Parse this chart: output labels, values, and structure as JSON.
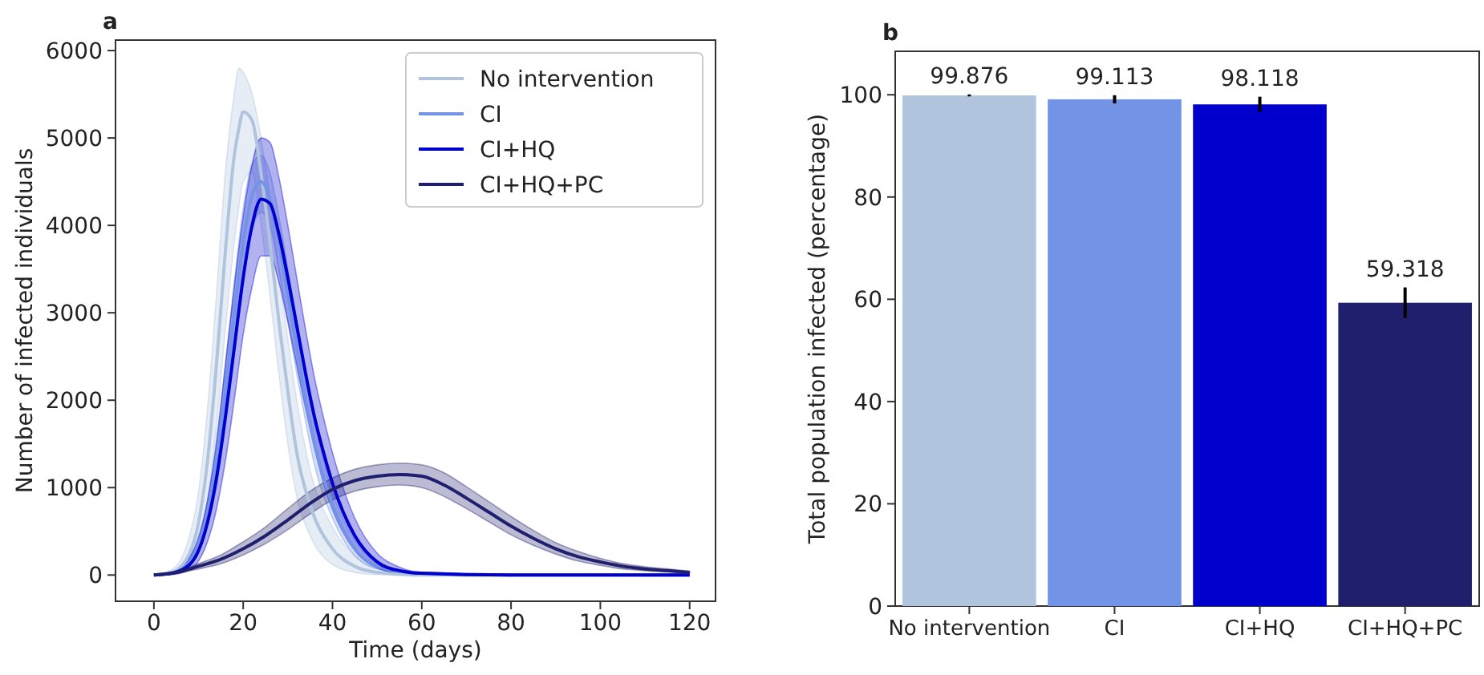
{
  "chart_data": [
    {
      "type": "line",
      "title": "a",
      "xlabel": "Time (days)",
      "ylabel": "Number of infected individuals",
      "xlim": [
        -8.6,
        125.8
      ],
      "ylim": [
        -300,
        6120
      ],
      "xticks": [
        0,
        20,
        40,
        60,
        80,
        100,
        120
      ],
      "yticks": [
        0,
        1000,
        2000,
        3000,
        4000,
        5000,
        6000
      ],
      "grid": false,
      "legend": "top right",
      "line_style": "solid",
      "marker": "none",
      "series": [
        {
          "name": "No intervention",
          "color": "#b0c4de",
          "x": [
            0,
            4,
            8,
            10,
            12,
            14,
            16,
            18,
            19,
            20,
            22,
            24,
            26,
            28,
            30,
            32,
            35,
            40,
            45,
            50,
            60,
            80,
            100,
            120
          ],
          "values": [
            0,
            30,
            250,
            600,
            1300,
            2400,
            3700,
            4800,
            5100,
            5300,
            5200,
            4600,
            3800,
            2900,
            2100,
            1400,
            800,
            300,
            100,
            30,
            0,
            0,
            0,
            0
          ],
          "lower": [
            0,
            10,
            120,
            350,
            850,
            1700,
            2800,
            3800,
            4200,
            4500,
            4600,
            4000,
            3200,
            2300,
            1500,
            900,
            450,
            120,
            30,
            5,
            0,
            0,
            0,
            0
          ],
          "upper": [
            0,
            60,
            450,
            950,
            1900,
            3200,
            4600,
            5500,
            5800,
            5750,
            5500,
            5000,
            4300,
            3500,
            2700,
            2000,
            1200,
            550,
            220,
            80,
            15,
            0,
            0,
            0
          ]
        },
        {
          "name": "CI",
          "color": "#7393e6",
          "x": [
            0,
            4,
            8,
            10,
            12,
            14,
            16,
            18,
            20,
            22,
            24,
            26,
            28,
            30,
            32,
            34,
            36,
            40,
            45,
            50,
            60,
            80,
            100,
            120
          ],
          "values": [
            0,
            20,
            150,
            350,
            700,
            1300,
            2100,
            3000,
            3800,
            4350,
            4500,
            4300,
            3800,
            3200,
            2600,
            2000,
            1500,
            800,
            300,
            100,
            20,
            0,
            0,
            0
          ],
          "lower": [
            0,
            10,
            100,
            260,
            550,
            1050,
            1800,
            2650,
            3400,
            3950,
            4150,
            4000,
            3500,
            2900,
            2300,
            1750,
            1250,
            650,
            220,
            70,
            10,
            0,
            0,
            0
          ],
          "upper": [
            0,
            30,
            200,
            450,
            850,
            1550,
            2400,
            3350,
            4200,
            4700,
            4800,
            4600,
            4100,
            3500,
            2900,
            2250,
            1750,
            950,
            400,
            140,
            30,
            0,
            0,
            0
          ]
        },
        {
          "name": "CI+HQ",
          "color": "#0000cd",
          "x": [
            0,
            4,
            8,
            10,
            12,
            14,
            16,
            18,
            20,
            22,
            24,
            26,
            28,
            30,
            32,
            34,
            36,
            38,
            40,
            45,
            50,
            55,
            60,
            80,
            100,
            120
          ],
          "values": [
            0,
            20,
            120,
            280,
            600,
            1100,
            1800,
            2600,
            3400,
            4000,
            4300,
            4250,
            3900,
            3400,
            2850,
            2300,
            1800,
            1400,
            1050,
            450,
            150,
            50,
            20,
            0,
            0,
            0
          ],
          "lower": [
            0,
            5,
            60,
            160,
            380,
            750,
            1300,
            2000,
            2750,
            3300,
            3650,
            3650,
            3350,
            2900,
            2400,
            1900,
            1450,
            1050,
            750,
            280,
            80,
            20,
            5,
            0,
            0,
            0
          ],
          "upper": [
            0,
            35,
            200,
            420,
            850,
            1500,
            2400,
            3300,
            4100,
            4700,
            5000,
            4950,
            4550,
            4000,
            3400,
            2800,
            2250,
            1800,
            1400,
            650,
            250,
            90,
            30,
            0,
            0,
            0
          ]
        },
        {
          "name": "CI+HQ+PC",
          "color": "#1f1f6e",
          "x": [
            0,
            5,
            10,
            15,
            20,
            25,
            30,
            35,
            40,
            45,
            50,
            55,
            60,
            65,
            70,
            75,
            80,
            85,
            90,
            95,
            100,
            105,
            110,
            115,
            120
          ],
          "values": [
            0,
            30,
            100,
            180,
            300,
            450,
            630,
            820,
            980,
            1080,
            1130,
            1150,
            1130,
            1030,
            880,
            720,
            560,
            420,
            300,
            210,
            150,
            100,
            70,
            50,
            30
          ],
          "lower": [
            0,
            20,
            70,
            130,
            230,
            360,
            520,
            700,
            860,
            960,
            1010,
            1030,
            1000,
            900,
            760,
            610,
            460,
            340,
            240,
            160,
            110,
            70,
            50,
            35,
            20
          ],
          "upper": [
            0,
            40,
            130,
            230,
            380,
            550,
            760,
            960,
            1110,
            1210,
            1260,
            1280,
            1260,
            1170,
            1010,
            840,
            670,
            510,
            370,
            270,
            190,
            130,
            95,
            70,
            45
          ]
        }
      ]
    },
    {
      "type": "bar",
      "title": "b",
      "ylabel": "Total population infected (percentage)",
      "categories": [
        "No intervention",
        "CI",
        "CI+HQ",
        "CI+HQ+PC"
      ],
      "values": [
        99.876,
        99.113,
        98.118,
        59.318
      ],
      "colors": [
        "#b0c4de",
        "#7393e6",
        "#0000cd",
        "#1f1f6e"
      ],
      "errors": [
        0.2,
        0.8,
        1.5,
        3
      ],
      "data_labels": true,
      "ylim": [
        0,
        108.5
      ],
      "yticks": [
        0,
        20,
        40,
        60,
        80,
        100
      ],
      "grid": false
    }
  ]
}
